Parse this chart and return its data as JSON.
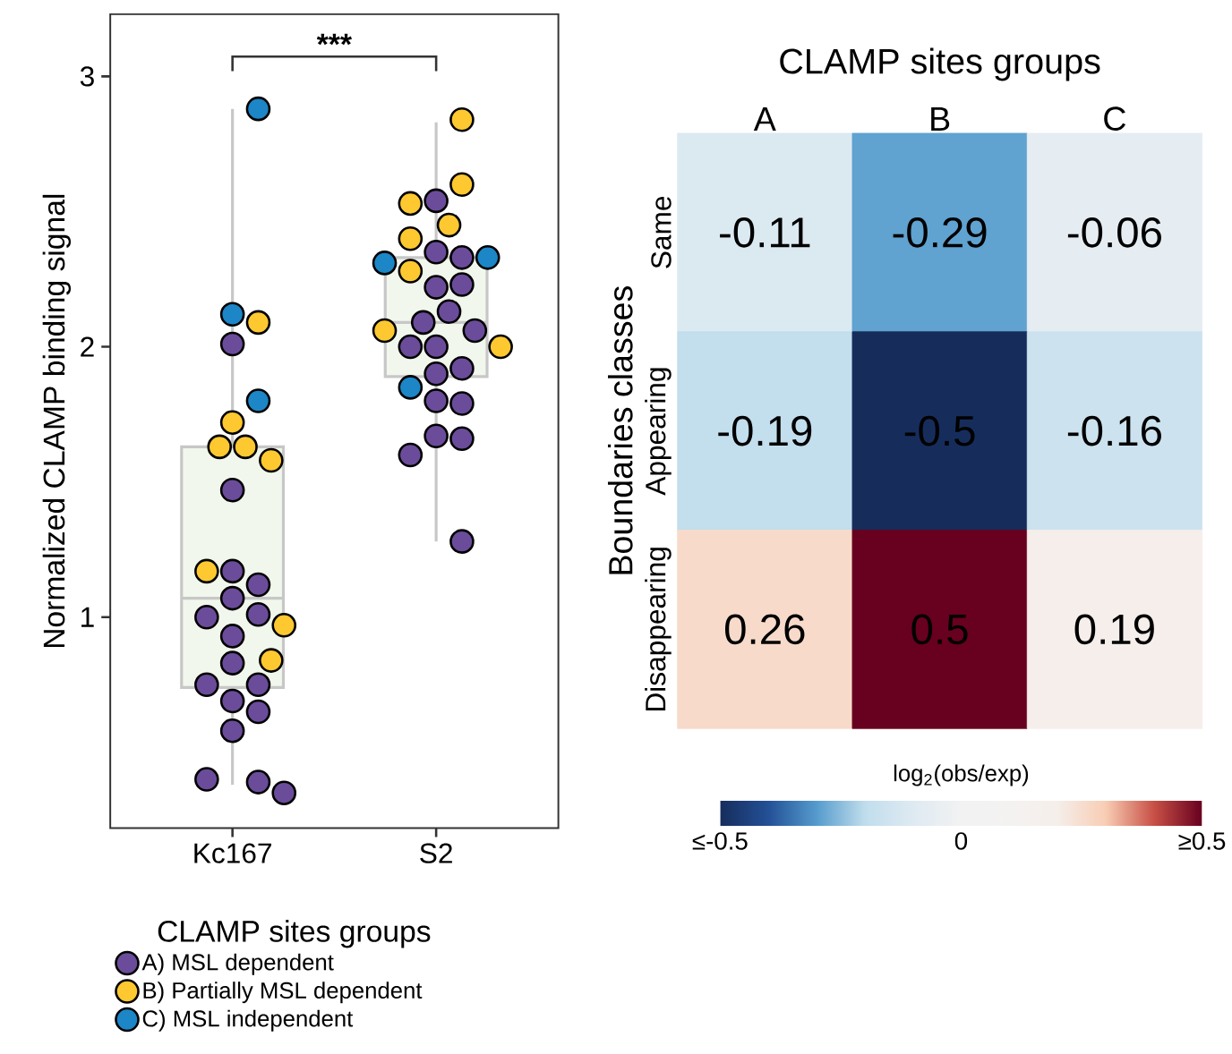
{
  "chart_data": [
    {
      "type": "box",
      "ylabel": "Normalized CLAMP binding signal",
      "legend_title": "CLAMP sites groups",
      "legend": "bottom",
      "color": "#f1f7ec",
      "categories": [
        "Kc167",
        "S2"
      ],
      "ylim": [
        0.22,
        3.23
      ],
      "yticks": [
        1,
        2,
        3
      ],
      "boxes": [
        {
          "low": 0.38,
          "q1": 0.74,
          "median": 1.07,
          "q3": 1.63,
          "high": 2.88
        },
        {
          "low": 1.28,
          "q1": 1.89,
          "median": 2.09,
          "q3": 2.33,
          "high": 2.83
        }
      ],
      "annotations": [
        "***"
      ],
      "series": [
        {
          "name": "A) MSL dependent",
          "type": "scatter",
          "color": "#6b4c9a",
          "x": [
            "Kc167",
            "Kc167",
            "Kc167",
            "Kc167",
            "Kc167",
            "Kc167",
            "Kc167",
            "Kc167",
            "Kc167",
            "Kc167",
            "Kc167",
            "Kc167",
            "Kc167",
            "Kc167",
            "Kc167",
            "Kc167",
            "Kc167",
            "S2",
            "S2",
            "S2",
            "S2",
            "S2",
            "S2",
            "S2",
            "S2",
            "S2",
            "S2",
            "S2",
            "S2",
            "S2",
            "S2",
            "S2",
            "S2",
            "S2",
            "S2"
          ],
          "values": [
            2.01,
            1.47,
            1.17,
            1.12,
            1.07,
            1.01,
            1.0,
            0.93,
            0.83,
            0.75,
            0.75,
            0.69,
            0.65,
            0.58,
            0.39,
            0.4,
            0.35,
            2.54,
            2.35,
            2.33,
            2.22,
            2.23,
            2.13,
            2.09,
            2.06,
            2.0,
            2.0,
            1.9,
            1.92,
            1.8,
            1.79,
            1.67,
            1.66,
            1.6,
            1.28
          ]
        },
        {
          "name": "B) Partially MSL dependent",
          "type": "scatter",
          "color": "#fdc830",
          "x": [
            "Kc167",
            "Kc167",
            "Kc167",
            "Kc167",
            "Kc167",
            "Kc167",
            "Kc167",
            "Kc167",
            "S2",
            "S2",
            "S2",
            "S2",
            "S2",
            "S2",
            "S2",
            "S2"
          ],
          "values": [
            2.09,
            1.72,
            1.63,
            1.63,
            1.58,
            1.17,
            0.97,
            0.84,
            2.84,
            2.6,
            2.53,
            2.45,
            2.4,
            2.28,
            2.06,
            2.0
          ]
        },
        {
          "name": "C) MSL independent",
          "type": "scatter",
          "color": "#1c86c7",
          "x": [
            "Kc167",
            "Kc167",
            "Kc167",
            "S2",
            "S2",
            "S2"
          ],
          "values": [
            2.88,
            2.12,
            1.8,
            2.33,
            2.31,
            1.85
          ]
        }
      ]
    },
    {
      "type": "heatmap",
      "title": "CLAMP sites groups",
      "ylabel": "Boundaries classes",
      "clabel": "log$_{2}$(obs/exp)",
      "categories": [
        "A",
        "B",
        "C"
      ],
      "y_categories": [
        "Same",
        "Appearing",
        "Disappearing"
      ],
      "cells": [
        [
          -0.11,
          -0.29,
          -0.06
        ],
        [
          -0.19,
          -0.5,
          -0.16
        ],
        [
          0.26,
          0.5,
          0.19
        ]
      ],
      "data_labels": true,
      "clim": [
        -0.5,
        0.5
      ],
      "cticks": [
        {
          "value": -0.5,
          "label": "≤-0.5"
        },
        0,
        {
          "value": 0.5,
          "label": "≥0.5"
        }
      ]
    }
  ]
}
